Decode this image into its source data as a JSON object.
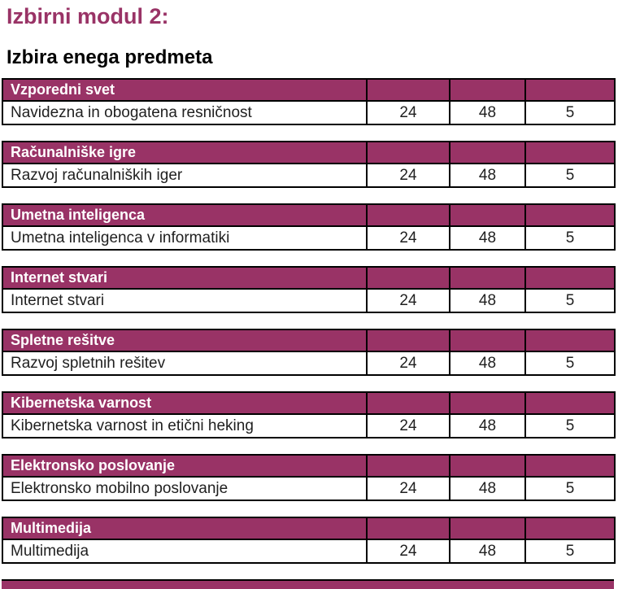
{
  "header": {
    "title": "Izbirni modul 2:",
    "subtitle": "Izbira enega predmeta"
  },
  "colors": {
    "accent": "#993366",
    "header_text": "#ffffff",
    "table_border": "#000000"
  },
  "modules": [
    {
      "name": "Vzporedni svet",
      "subject": "Navidezna in obogatena resničnost",
      "values": [
        "24",
        "48",
        "5"
      ]
    },
    {
      "name": "Računalniške igre",
      "subject": "Razvoj računalniških iger",
      "values": [
        "24",
        "48",
        "5"
      ]
    },
    {
      "name": "Umetna inteligenca",
      "subject": "Umetna inteligenca v informatiki",
      "values": [
        "24",
        "48",
        "5"
      ]
    },
    {
      "name": "Internet stvari",
      "subject": "Internet stvari",
      "values": [
        "24",
        "48",
        "5"
      ]
    },
    {
      "name": "Spletne rešitve",
      "subject": "Razvoj spletnih rešitev",
      "values": [
        "24",
        "48",
        "5"
      ]
    },
    {
      "name": "Kibernetska varnost",
      "subject": "Kibernetska varnost in etični heking",
      "values": [
        "24",
        "48",
        "5"
      ]
    },
    {
      "name": "Elektronsko poslovanje",
      "subject": "Elektronsko mobilno poslovanje",
      "values": [
        "24",
        "48",
        "5"
      ]
    },
    {
      "name": "Multimedija",
      "subject": "Multimedija",
      "values": [
        "24",
        "48",
        "5"
      ]
    }
  ],
  "partial_next_table": {
    "visible": true
  }
}
